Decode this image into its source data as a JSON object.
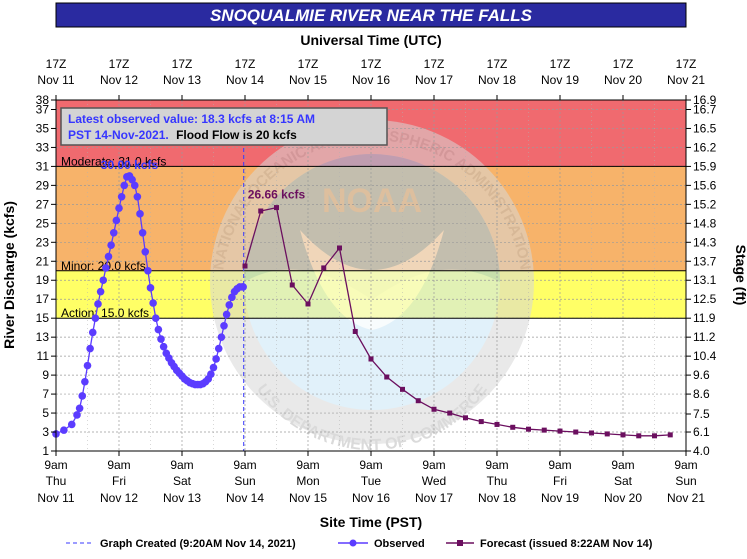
{
  "chart_data": {
    "type": "line",
    "title": "SNOQUALMIE RIVER NEAR THE FALLS",
    "top_axis_title": "Universal Time (UTC)",
    "bottom_axis_title": "Site Time (PST)",
    "ylabel_left": "River Discharge (kcfs)",
    "ylabel_right": "Stage (ft)",
    "x_range_hours": [
      0,
      240
    ],
    "ylim": [
      1,
      38
    ],
    "yticks_left": [
      "1",
      "3",
      "5",
      "7",
      "9",
      "11",
      "13",
      "15",
      "17",
      "19",
      "21",
      "23",
      "25",
      "27",
      "29",
      "31",
      "33",
      "35",
      "37",
      "38"
    ],
    "yticks_right": [
      {
        "kcfs": 1.0,
        "label": "4.0"
      },
      {
        "kcfs": 3.0,
        "label": "6.1"
      },
      {
        "kcfs": 4.9,
        "label": "7.5"
      },
      {
        "kcfs": 7.0,
        "label": "8.6"
      },
      {
        "kcfs": 9.0,
        "label": "9.6"
      },
      {
        "kcfs": 11.0,
        "label": "10.4"
      },
      {
        "kcfs": 13.0,
        "label": "11.2"
      },
      {
        "kcfs": 15.0,
        "label": "11.9"
      },
      {
        "kcfs": 17.0,
        "label": "12.5"
      },
      {
        "kcfs": 19.0,
        "label": "13.1"
      },
      {
        "kcfs": 21.0,
        "label": "13.7"
      },
      {
        "kcfs": 23.0,
        "label": "14.3"
      },
      {
        "kcfs": 25.0,
        "label": "14.8"
      },
      {
        "kcfs": 27.0,
        "label": "15.2"
      },
      {
        "kcfs": 29.0,
        "label": "15.6"
      },
      {
        "kcfs": 31.0,
        "label": "15.9"
      },
      {
        "kcfs": 33.0,
        "label": "16.2"
      },
      {
        "kcfs": 35.0,
        "label": "16.5"
      },
      {
        "kcfs": 37.0,
        "label": "16.7"
      },
      {
        "kcfs": 38.0,
        "label": "16.9"
      }
    ],
    "x_ticks_bottom": [
      {
        "h": 0,
        "time": "9am",
        "day": "Thu",
        "date": "Nov 11"
      },
      {
        "h": 24,
        "time": "9am",
        "day": "Fri",
        "date": "Nov 12"
      },
      {
        "h": 48,
        "time": "9am",
        "day": "Sat",
        "date": "Nov 13"
      },
      {
        "h": 72,
        "time": "9am",
        "day": "Sun",
        "date": "Nov 14"
      },
      {
        "h": 96,
        "time": "9am",
        "day": "Mon",
        "date": "Nov 15"
      },
      {
        "h": 120,
        "time": "9am",
        "day": "Tue",
        "date": "Nov 16"
      },
      {
        "h": 144,
        "time": "9am",
        "day": "Wed",
        "date": "Nov 17"
      },
      {
        "h": 168,
        "time": "9am",
        "day": "Thu",
        "date": "Nov 18"
      },
      {
        "h": 192,
        "time": "9am",
        "day": "Fri",
        "date": "Nov 19"
      },
      {
        "h": 216,
        "time": "9am",
        "day": "Sat",
        "date": "Nov 20"
      },
      {
        "h": 240,
        "time": "9am",
        "day": "Sun",
        "date": "Nov 21"
      }
    ],
    "x_ticks_top": [
      {
        "h": 0,
        "time": "17Z",
        "date": "Nov 11"
      },
      {
        "h": 24,
        "time": "17Z",
        "date": "Nov 12"
      },
      {
        "h": 48,
        "time": "17Z",
        "date": "Nov 13"
      },
      {
        "h": 72,
        "time": "17Z",
        "date": "Nov 14"
      },
      {
        "h": 96,
        "time": "17Z",
        "date": "Nov 15"
      },
      {
        "h": 120,
        "time": "17Z",
        "date": "Nov 16"
      },
      {
        "h": 144,
        "time": "17Z",
        "date": "Nov 17"
      },
      {
        "h": 168,
        "time": "17Z",
        "date": "Nov 18"
      },
      {
        "h": 192,
        "time": "17Z",
        "date": "Nov 19"
      },
      {
        "h": 216,
        "time": "17Z",
        "date": "Nov 20"
      },
      {
        "h": 240,
        "time": "17Z",
        "date": "Nov 21"
      }
    ],
    "flood_categories": [
      {
        "name": "Moderate",
        "label": "Moderate: 31.0 kcfs",
        "from": 31.0,
        "to": 38.0,
        "color": "#f06a6f"
      },
      {
        "name": "Flood",
        "label": "",
        "from": 20.0,
        "to": 31.0,
        "color": "#f7b36a"
      },
      {
        "name": "Minor",
        "label": "Minor: 20.0 kcfs",
        "from": 15.0,
        "to": 20.0,
        "color": "#ffff66"
      },
      {
        "name": "Action",
        "label": "Action: 15.0 kcfs",
        "from": 1.0,
        "to": 15.0,
        "color": "#ffffff"
      }
    ],
    "moderate_line": 31.0,
    "minor_line": 20.0,
    "action_line": 15.0,
    "info_box": {
      "line1": "Latest observed value: 18.3 kcfs at 8:15 AM",
      "line2": "PST 14-Nov-2021.",
      "line2_suffix": "Flood Flow is 20 kcfs"
    },
    "observed_peak_label": "30.00 kcfs",
    "forecast_peak_label": "26.66 kcfs",
    "graph_created_hour": 71.5,
    "series": [
      {
        "name": "Observed",
        "color": "#5b3cff",
        "x": [
          0,
          3,
          6,
          8,
          9,
          10,
          11,
          12,
          13,
          14,
          15,
          16,
          17,
          18,
          19,
          20,
          21,
          22,
          23,
          24,
          25,
          26,
          27,
          28,
          29,
          30,
          31,
          32,
          33,
          34,
          35,
          36,
          37,
          38,
          39,
          40,
          41,
          42,
          43,
          44,
          45,
          46,
          47,
          48,
          49,
          50,
          51,
          52,
          53,
          54,
          55,
          56,
          57,
          58,
          59,
          60,
          61,
          62,
          63,
          64,
          65,
          66,
          67,
          68,
          69,
          70,
          71,
          71.3
        ],
        "y": [
          2.8,
          3.2,
          3.8,
          4.8,
          5.5,
          6.8,
          8.3,
          10.0,
          11.8,
          13.5,
          15.0,
          16.5,
          17.8,
          19.0,
          20.3,
          21.5,
          22.7,
          24.0,
          25.3,
          26.6,
          27.8,
          29.0,
          29.9,
          30.0,
          29.6,
          29.0,
          27.8,
          26.0,
          24.0,
          22.0,
          20.0,
          18.2,
          16.6,
          15.0,
          13.8,
          12.8,
          12.0,
          11.3,
          10.8,
          10.3,
          9.9,
          9.5,
          9.2,
          8.9,
          8.6,
          8.4,
          8.2,
          8.1,
          8.0,
          8.0,
          8.0,
          8.1,
          8.3,
          8.6,
          9.1,
          9.8,
          10.7,
          11.8,
          13.0,
          14.2,
          15.4,
          16.4,
          17.2,
          17.8,
          18.1,
          18.3,
          18.3,
          18.3
        ]
      },
      {
        "name": "Forecast",
        "color": "#6b0f5f",
        "x": [
          72,
          78,
          84,
          90,
          96,
          102,
          108,
          114,
          120,
          126,
          132,
          138,
          144,
          150,
          156,
          162,
          168,
          174,
          180,
          186,
          192,
          198,
          204,
          210,
          216,
          222,
          228,
          234
        ],
        "y": [
          20.5,
          26.3,
          26.66,
          18.5,
          16.5,
          20.3,
          22.4,
          13.6,
          10.7,
          8.8,
          7.5,
          6.3,
          5.4,
          5.0,
          4.5,
          4.1,
          3.8,
          3.5,
          3.3,
          3.2,
          3.1,
          3.0,
          2.9,
          2.8,
          2.7,
          2.6,
          2.6,
          2.7
        ]
      }
    ]
  },
  "legend": {
    "graph_created": "Graph Created (9:20AM Nov 14, 2021)",
    "observed": "Observed",
    "forecast": "Forecast (issued 8:22AM Nov 14)"
  },
  "watermark": {
    "top_arc": "NATIONAL OCEANIC AND ATMOSPHERIC ADMINISTRATION",
    "bottom_arc": "U.S. DEPARTMENT OF COMMERCE",
    "center": "NOAA"
  }
}
